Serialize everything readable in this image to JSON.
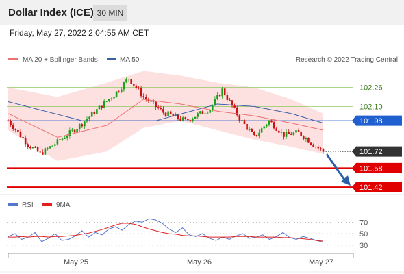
{
  "header": {
    "title": "Dollar Index (ICE)",
    "interval": "30 MIN"
  },
  "timestamp": "Friday, May 27, 2022 2:04:55 AM CET",
  "legend": {
    "bollinger": "MA 20 + Bollinger Bands",
    "ma50": "MA 50",
    "credit": "Research © 2022 Trading Central"
  },
  "rsi_legend": {
    "rsi": "RSI",
    "ma": "9MA"
  },
  "colors": {
    "up": "#1aa11a",
    "down": "#cc1111",
    "ma20": "#f07070",
    "ma50": "#3a5fa8",
    "band_fill": "#fde0e0",
    "resistance": "#90c860",
    "pivot": "#1f5fd0",
    "support": "#e00000",
    "current": "#333333",
    "arrow": "#2a5fa8",
    "rsi": "#5577cc",
    "rsi_ma": "#e02020"
  },
  "chart_data": [
    {
      "type": "candlestick",
      "title": "Dollar Index (ICE)",
      "interval": "30 MIN",
      "x_ticks": [
        "May 25",
        "May 26",
        "May 27"
      ],
      "ylim": [
        101.38,
        102.42
      ],
      "levels": [
        {
          "label": "102.26",
          "value": 102.26,
          "role": "resistance"
        },
        {
          "label": "102.10",
          "value": 102.1,
          "role": "resistance"
        },
        {
          "label": "101.98",
          "value": 101.98,
          "role": "pivot"
        },
        {
          "label": "101.72",
          "value": 101.72,
          "role": "current"
        },
        {
          "label": "101.58",
          "value": 101.58,
          "role": "support"
        },
        {
          "label": "101.42",
          "value": 101.42,
          "role": "support"
        }
      ],
      "key_points": [
        {
          "x": 0,
          "close": 101.98
        },
        {
          "x": 8,
          "close": 101.78
        },
        {
          "x": 13,
          "close": 101.7
        },
        {
          "x": 20,
          "close": 101.8
        },
        {
          "x": 28,
          "close": 101.92
        },
        {
          "x": 36,
          "close": 102.07
        },
        {
          "x": 44,
          "close": 102.22
        },
        {
          "x": 49,
          "close": 102.34
        },
        {
          "x": 55,
          "close": 102.18
        },
        {
          "x": 63,
          "close": 102.05
        },
        {
          "x": 72,
          "close": 101.98
        },
        {
          "x": 82,
          "close": 102.08
        },
        {
          "x": 87,
          "close": 102.24
        },
        {
          "x": 94,
          "close": 102.0
        },
        {
          "x": 100,
          "close": 101.84
        },
        {
          "x": 106,
          "close": 101.98
        },
        {
          "x": 112,
          "close": 101.86
        },
        {
          "x": 118,
          "close": 101.88
        },
        {
          "x": 124,
          "close": 101.78
        },
        {
          "x": 128,
          "close": 101.72
        }
      ],
      "ma20": [
        {
          "x": 0,
          "y": 102.04
        },
        {
          "x": 20,
          "y": 101.84
        },
        {
          "x": 40,
          "y": 101.94
        },
        {
          "x": 55,
          "y": 102.16
        },
        {
          "x": 70,
          "y": 102.12
        },
        {
          "x": 85,
          "y": 102.06
        },
        {
          "x": 100,
          "y": 102.02
        },
        {
          "x": 115,
          "y": 101.96
        },
        {
          "x": 128,
          "y": 101.9
        }
      ],
      "ma50": [
        {
          "x": 0,
          "y": 102.14
        },
        {
          "x": 30,
          "y": 101.98
        },
        {
          "x": 60,
          "y": 101.98
        },
        {
          "x": 85,
          "y": 102.12
        },
        {
          "x": 100,
          "y": 102.1
        },
        {
          "x": 115,
          "y": 102.04
        },
        {
          "x": 128,
          "y": 101.96
        }
      ],
      "bollinger_upper": [
        {
          "x": 0,
          "y": 102.26
        },
        {
          "x": 20,
          "y": 102.18
        },
        {
          "x": 40,
          "y": 102.3
        },
        {
          "x": 55,
          "y": 102.4
        },
        {
          "x": 70,
          "y": 102.36
        },
        {
          "x": 85,
          "y": 102.3
        },
        {
          "x": 100,
          "y": 102.26
        },
        {
          "x": 115,
          "y": 102.16
        },
        {
          "x": 128,
          "y": 102.04
        }
      ],
      "bollinger_lower": [
        {
          "x": 0,
          "y": 101.9
        },
        {
          "x": 20,
          "y": 101.64
        },
        {
          "x": 40,
          "y": 101.72
        },
        {
          "x": 55,
          "y": 101.92
        },
        {
          "x": 70,
          "y": 101.98
        },
        {
          "x": 85,
          "y": 101.9
        },
        {
          "x": 100,
          "y": 101.82
        },
        {
          "x": 115,
          "y": 101.76
        },
        {
          "x": 128,
          "y": 101.7
        }
      ],
      "forecast_arrow": {
        "from": 101.72,
        "to": 101.42
      }
    },
    {
      "type": "line",
      "title": "RSI",
      "ylim": [
        25,
        80
      ],
      "y_ticks": [
        70,
        50,
        30
      ],
      "series": [
        {
          "name": "RSI",
          "values": [
            45,
            50,
            40,
            44,
            52,
            36,
            42,
            50,
            38,
            40,
            46,
            55,
            44,
            52,
            48,
            58,
            62,
            56,
            66,
            72,
            70,
            76,
            74,
            68,
            58,
            52,
            60,
            48,
            45,
            50,
            42,
            38,
            44,
            40,
            46,
            50,
            42,
            44,
            48,
            40,
            45,
            52,
            43,
            40,
            45,
            42,
            38,
            35
          ]
        },
        {
          "name": "9MA",
          "values": [
            44,
            44,
            45,
            44,
            45,
            45,
            44,
            45,
            45,
            46,
            47,
            49,
            51,
            54,
            57,
            61,
            65,
            68,
            68,
            66,
            62,
            58,
            55,
            52,
            50,
            49,
            47,
            46,
            46,
            45,
            44,
            44,
            44,
            44,
            45,
            45,
            45,
            44,
            44,
            44,
            44,
            43,
            43,
            42,
            41,
            40,
            38,
            37
          ]
        }
      ]
    }
  ]
}
